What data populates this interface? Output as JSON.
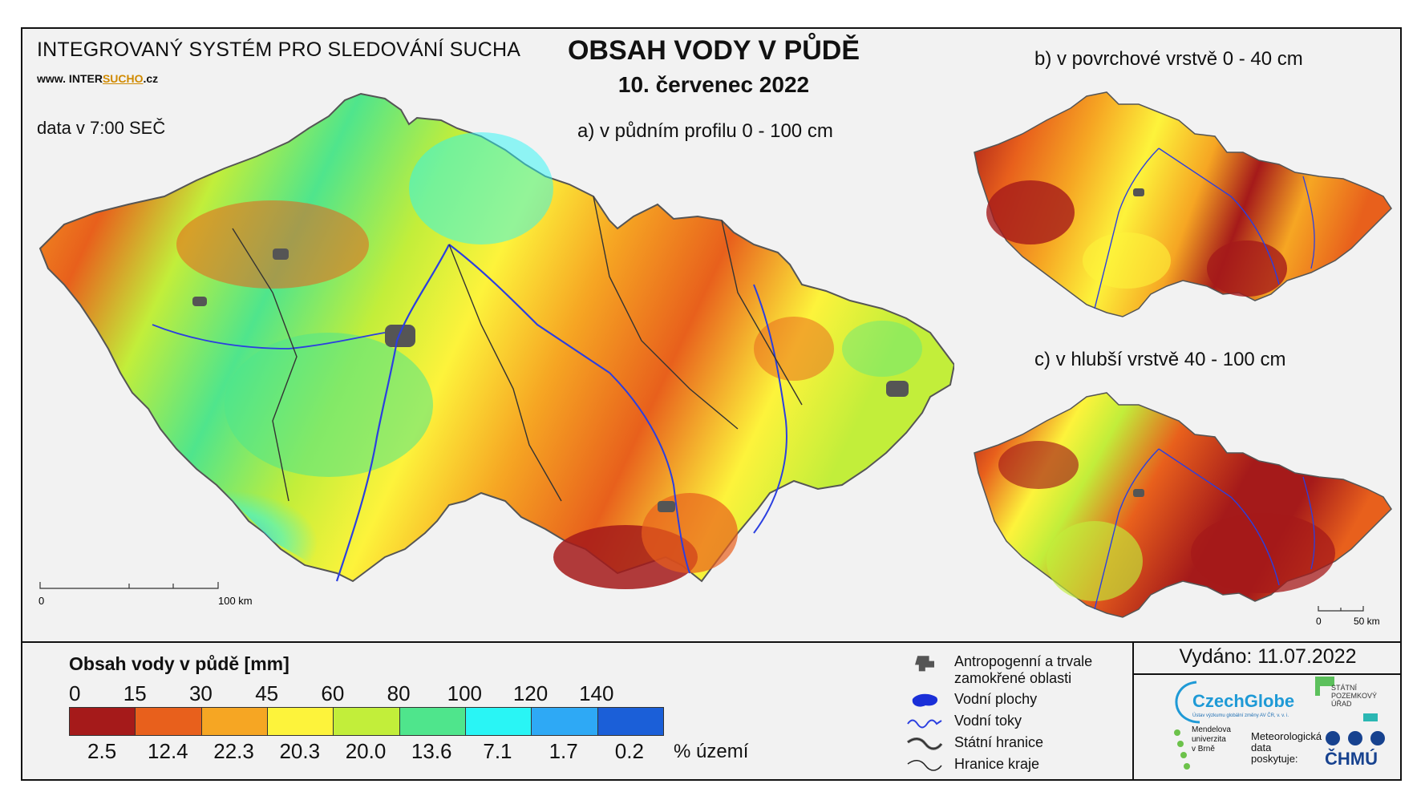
{
  "header": {
    "system_title": "INTEGROVANÝ SYSTÉM PRO SLEDOVÁNÍ SUCHA",
    "website_prefix": "www. INTER",
    "website_brand": "SUCHO",
    "website_suffix": ".cz",
    "data_time": "data v 7:00 SEČ",
    "title": "OBSAH VODY V PŮDĚ",
    "date": "10. červenec 2022"
  },
  "maps": {
    "main_label": "a) v půdním profilu 0 - 100 cm",
    "b_label": "b) v povrchové vrstvě 0 - 40 cm",
    "c_label": "c) v hlubší vrstvě 40 - 100 cm",
    "main_scale": {
      "start": "0",
      "end": "100 km"
    },
    "small_scale": {
      "start": "0",
      "end": "50 km"
    }
  },
  "legend": {
    "title": "Obsah vody v půdě  [mm]",
    "class_bounds": [
      "0",
      "15",
      "30",
      "45",
      "60",
      "80",
      "100",
      "120",
      "140"
    ],
    "colors": [
      "#a51a1a",
      "#e8601c",
      "#f6a623",
      "#fdf33b",
      "#c2ee3a",
      "#4fe58c",
      "#29f5f5",
      "#2ea9f5",
      "#1b5fd8"
    ],
    "area_percent": [
      "2.5",
      "12.4",
      "22.3",
      "20.3",
      "20.0",
      "13.6",
      "7.1",
      "1.7",
      "0.2"
    ],
    "area_unit": "% území"
  },
  "symbols": [
    {
      "icon": "urban-area-icon",
      "label_line1": "Antropogenní a trvale",
      "label_line2": "zamokřené oblasti"
    },
    {
      "icon": "water-body-icon",
      "label_line1": "Vodní plochy",
      "label_line2": ""
    },
    {
      "icon": "river-icon",
      "label_line1": "Vodní toky",
      "label_line2": ""
    },
    {
      "icon": "state-border-icon",
      "label_line1": "Státní hranice",
      "label_line2": ""
    },
    {
      "icon": "region-border-icon",
      "label_line1": "Hranice kraje",
      "label_line2": ""
    }
  ],
  "footer": {
    "issued": "Vydáno: 11.07.2022",
    "czechglobe": "CzechGlobe",
    "czechglobe_sub": "Ústav výzkumu globální změny AV ČR, v. v. i.",
    "spu_line1": "STÁTNÍ",
    "spu_line2": "POZEMKOVÝ",
    "spu_line3": "ÚŘAD",
    "mu_line1": "Mendelova",
    "mu_line2": "univerzita",
    "mu_line3": "v Brně",
    "meteo_line1": "Meteorologická",
    "meteo_line2": "data",
    "meteo_line3": "poskytuje:",
    "chmu": "ČHMÚ"
  }
}
